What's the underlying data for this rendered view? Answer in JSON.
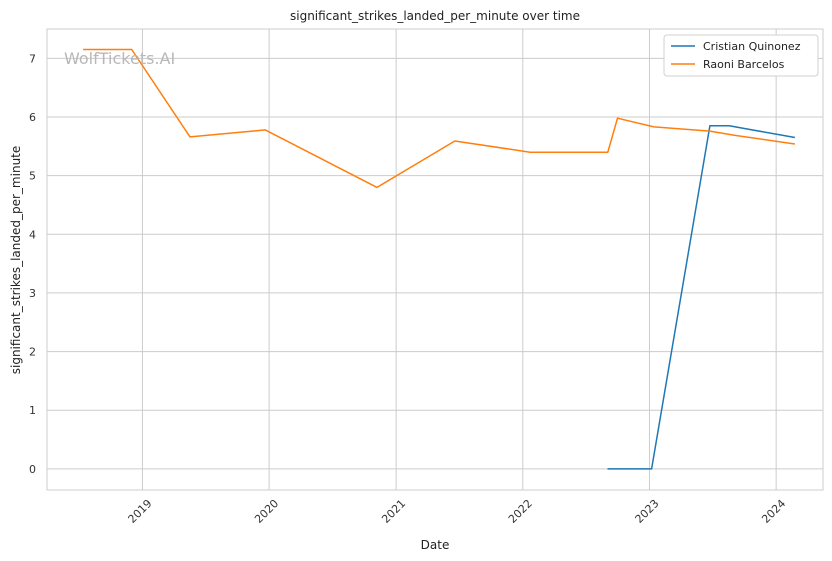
{
  "chart_data": {
    "type": "line",
    "title": "significant_strikes_landed_per_minute over time",
    "xlabel": "Date",
    "ylabel": "significant_strikes_landed_per_minute",
    "x_ticks": [
      "2019",
      "2020",
      "2021",
      "2022",
      "2023",
      "2024"
    ],
    "y_ticks": [
      0,
      1,
      2,
      3,
      4,
      5,
      6,
      7
    ],
    "xlim": [
      "2018-04-01",
      "2024-05-15"
    ],
    "ylim": [
      -0.36,
      7.5
    ],
    "grid": true,
    "legend_position": "top-right",
    "watermark": "WolfTickets.AI",
    "series": [
      {
        "name": "Cristian Quinonez",
        "color": "#1f77b4",
        "points": [
          {
            "date": "2022-09-02",
            "value": 0.0
          },
          {
            "date": "2023-01-07",
            "value": 0.0
          },
          {
            "date": "2023-06-24",
            "value": 5.85
          },
          {
            "date": "2023-08-19",
            "value": 5.85
          },
          {
            "date": "2024-02-24",
            "value": 5.65
          }
        ]
      },
      {
        "name": "Raoni Barcelos",
        "color": "#ff7f0e",
        "points": [
          {
            "date": "2018-07-14",
            "value": 7.15
          },
          {
            "date": "2018-12-01",
            "value": 7.15
          },
          {
            "date": "2019-05-18",
            "value": 5.66
          },
          {
            "date": "2019-12-21",
            "value": 5.78
          },
          {
            "date": "2020-11-07",
            "value": 4.8
          },
          {
            "date": "2021-06-19",
            "value": 5.59
          },
          {
            "date": "2022-01-22",
            "value": 5.4
          },
          {
            "date": "2022-09-03",
            "value": 5.4
          },
          {
            "date": "2022-10-01",
            "value": 5.98
          },
          {
            "date": "2023-01-14",
            "value": 5.83
          },
          {
            "date": "2023-06-24",
            "value": 5.76
          },
          {
            "date": "2023-09-02",
            "value": 5.69
          },
          {
            "date": "2024-02-24",
            "value": 5.54
          }
        ]
      }
    ]
  }
}
